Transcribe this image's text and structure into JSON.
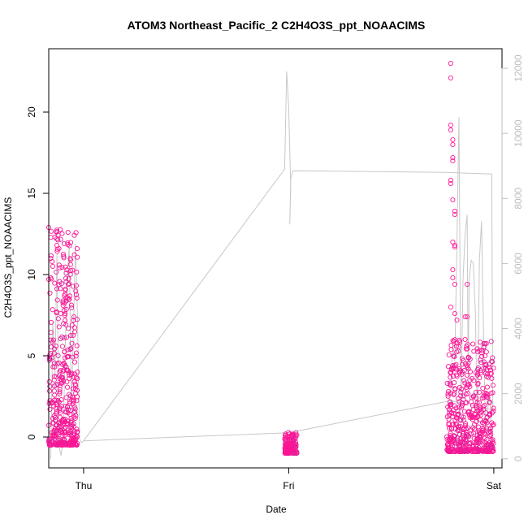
{
  "chart_data": {
    "type": "scatter",
    "title": "ATOM3 Northeast_Pacific_2 C2H4O3S_ppt_NOAACIMS",
    "xlabel": "Date",
    "ylabel": "C2H4O3S_ppt_NOAACIMS",
    "x_ticks": [
      {
        "label": "Thu",
        "x": 0
      },
      {
        "label": "Fri",
        "x": 1
      },
      {
        "label": "Sat",
        "x": 2
      }
    ],
    "y_left_ticks": [
      "0",
      "5",
      "10",
      "15",
      "20"
    ],
    "y_right_ticks": [
      "0",
      "2000",
      "4000",
      "6000",
      "8000",
      "10000",
      "12000"
    ],
    "xlim": [
      -0.17,
      2.04
    ],
    "ylim_left": [
      -1.9,
      23.9
    ],
    "ylim_right": [
      -280,
      12600
    ],
    "grid": false,
    "legend": "none",
    "colors": {
      "points": "#ff1493",
      "points_alt": "#e0209a",
      "altitude_line": "#c8c8c8",
      "right_axis": "#bdbdbd"
    },
    "series": [
      {
        "role": "scatter",
        "clusters": [
          {
            "x_start": -0.17,
            "x_end": -0.03,
            "y_min": -0.5,
            "y_max": 12.9,
            "n": 420,
            "seed": 11
          },
          {
            "x_start": 0.98,
            "x_end": 1.04,
            "y_min": -1.0,
            "y_max": 0.3,
            "n": 140,
            "seed": 23
          },
          {
            "x_start": 1.77,
            "x_end": 2.0,
            "y_min": -0.9,
            "y_max": 6.0,
            "n": 520,
            "seed": 37
          }
        ],
        "highlights": [
          [
            -0.17,
            12.9
          ],
          [
            -0.16,
            11.0
          ],
          [
            -0.14,
            12.3
          ],
          [
            -0.13,
            11.8
          ],
          [
            -0.12,
            11.6
          ],
          [
            -0.15,
            10.5
          ],
          [
            -0.17,
            9.7
          ],
          [
            -0.16,
            9.8
          ],
          [
            -0.1,
            8.1
          ],
          [
            -0.09,
            7.6
          ],
          [
            -0.09,
            8.8
          ],
          [
            -0.03,
            4.0
          ],
          [
            -0.03,
            3.6
          ],
          [
            1.79,
            23.0
          ],
          [
            1.79,
            22.1
          ],
          [
            1.79,
            19.2
          ],
          [
            1.79,
            18.9
          ],
          [
            1.8,
            18.3
          ],
          [
            1.8,
            18.0
          ],
          [
            1.8,
            17.2
          ],
          [
            1.8,
            17.0
          ],
          [
            1.79,
            15.8
          ],
          [
            1.79,
            15.6
          ],
          [
            1.8,
            14.6
          ],
          [
            1.81,
            13.9
          ],
          [
            1.81,
            13.7
          ],
          [
            1.8,
            12.0
          ],
          [
            1.81,
            11.8
          ],
          [
            1.81,
            11.7
          ],
          [
            1.8,
            10.3
          ],
          [
            1.8,
            9.8
          ],
          [
            1.81,
            9.4
          ],
          [
            1.79,
            8.0
          ],
          [
            1.81,
            7.6
          ],
          [
            1.82,
            7.2
          ],
          [
            1.87,
            9.4
          ],
          [
            1.86,
            7.4
          ],
          [
            1.87,
            7.4
          ],
          [
            1.86,
            6.0
          ],
          [
            1.87,
            4.4
          ],
          [
            1.87,
            4.3
          ],
          [
            1.87,
            3.2
          ]
        ]
      },
      {
        "role": "line",
        "axis": "right",
        "points": [
          [
            -0.16,
            0
          ],
          [
            -0.15,
            4200
          ],
          [
            -0.14,
            2500
          ],
          [
            -0.13,
            6300
          ],
          [
            -0.12,
            400
          ],
          [
            -0.11,
            100
          ],
          [
            -0.1,
            600
          ],
          [
            -0.09,
            3300
          ],
          [
            -0.08,
            5600
          ],
          [
            -0.07,
            6500
          ],
          [
            -0.06,
            1500
          ],
          [
            -0.05,
            3800
          ],
          [
            -0.04,
            6600
          ],
          [
            -0.03,
            4500
          ],
          [
            -0.02,
            600
          ],
          [
            -0.01,
            500
          ],
          [
            0.0,
            550
          ],
          [
            0.98,
            8900
          ],
          [
            0.99,
            11900
          ],
          [
            1.0,
            10800
          ],
          [
            1.01,
            8300
          ],
          [
            1.005,
            7200
          ],
          [
            1.01,
            8600
          ],
          [
            1.02,
            8850
          ],
          [
            1.76,
            8800
          ],
          [
            1.99,
            8750
          ],
          [
            1.995,
            1500
          ],
          [
            1.78,
            1800
          ],
          [
            1.79,
            2000
          ],
          [
            1.8,
            3500
          ],
          [
            1.81,
            3000
          ],
          [
            1.82,
            6600
          ],
          [
            1.83,
            10500
          ],
          [
            1.84,
            1500
          ],
          [
            1.85,
            5500
          ],
          [
            1.86,
            6900
          ],
          [
            1.87,
            7500
          ],
          [
            1.875,
            2500
          ],
          [
            1.88,
            5500
          ],
          [
            1.89,
            6100
          ],
          [
            1.9,
            6000
          ],
          [
            1.91,
            4500
          ],
          [
            1.92,
            900
          ],
          [
            1.93,
            6100
          ],
          [
            1.94,
            7300
          ],
          [
            1.95,
            3800
          ],
          [
            1.96,
            700
          ],
          [
            1.97,
            1500
          ],
          [
            1.98,
            2000
          ],
          [
            1.99,
            600
          ],
          [
            2.0,
            200
          ]
        ]
      },
      {
        "role": "line",
        "axis": "right",
        "points": [
          [
            0.0,
            550
          ],
          [
            1.0,
            800
          ],
          [
            1.8,
            1800
          ]
        ]
      }
    ]
  }
}
